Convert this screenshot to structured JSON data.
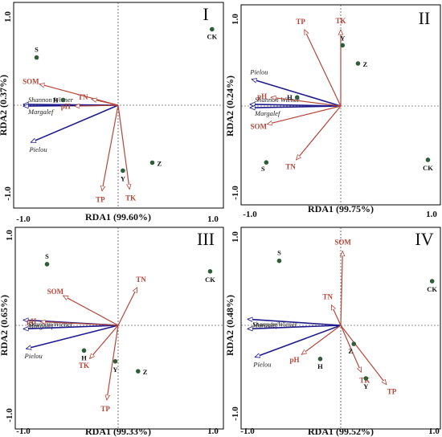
{
  "figure": {
    "colors": {
      "environment": "#b5473a",
      "diversity": "#1f1b8c",
      "site": "#2f5d3a"
    },
    "icons": {
      "site_marker": "filled-circle",
      "arrow": "open-triangle-head"
    }
  },
  "chart_data": [
    {
      "type": "scatter",
      "panel": "I",
      "xlabel": "RDA1 (99.60%)",
      "ylabel": "RDA2 (0.37%)",
      "xlim": [
        -1.0,
        1.0
      ],
      "ylim": [
        -1.0,
        1.0
      ],
      "x_ticks": [
        "-1.0",
        "1.0"
      ],
      "y_ticks": [
        "1.0",
        "-1.0"
      ],
      "environment_vectors": [
        {
          "name": "SOM",
          "x": -0.83,
          "y": 0.24
        },
        {
          "name": "TN",
          "x": -0.28,
          "y": 0.07
        },
        {
          "name": "pH",
          "x": -0.46,
          "y": -0.01
        },
        {
          "name": "TP",
          "x": -0.17,
          "y": -0.97
        },
        {
          "name": "TK",
          "x": 0.12,
          "y": -0.95
        }
      ],
      "diversity_vectors": [
        {
          "name": "Shannon Wiener",
          "x": -1.0,
          "y": 0.01
        },
        {
          "name": "Margalef",
          "x": -1.0,
          "y": -0.01
        },
        {
          "name": "Pielou",
          "x": -0.92,
          "y": -0.42
        }
      ],
      "sites": [
        {
          "name": "S",
          "x": -0.86,
          "y": 0.54
        },
        {
          "name": "H",
          "x": -0.58,
          "y": 0.06
        },
        {
          "name": "CK",
          "x": 0.99,
          "y": 0.86
        },
        {
          "name": "Y",
          "x": 0.05,
          "y": -0.74
        },
        {
          "name": "Z",
          "x": 0.36,
          "y": -0.65
        }
      ]
    },
    {
      "type": "scatter",
      "panel": "II",
      "xlabel": "RDA1 (99.75%)",
      "ylabel": "RDA2 (0.24%)",
      "xlim": [
        -1.0,
        1.0
      ],
      "ylim": [
        -1.0,
        1.0
      ],
      "x_ticks": [
        "-1.0",
        "1.0"
      ],
      "y_ticks": [
        "1.0",
        "-1.0"
      ],
      "environment_vectors": [
        {
          "name": "TP",
          "x": -0.4,
          "y": 0.88
        },
        {
          "name": "TK",
          "x": 0.0,
          "y": 0.88
        },
        {
          "name": "pH",
          "x": -0.77,
          "y": 0.1
        },
        {
          "name": "SOM",
          "x": -0.81,
          "y": -0.21
        },
        {
          "name": "TN",
          "x": -0.49,
          "y": -0.62
        }
      ],
      "diversity_vectors": [
        {
          "name": "Pielou",
          "x": -0.98,
          "y": 0.31
        },
        {
          "name": "Shannon Wiener",
          "x": -1.0,
          "y": 0.02
        },
        {
          "name": "Margalef",
          "x": -1.0,
          "y": -0.02
        }
      ],
      "sites": [
        {
          "name": "Y",
          "x": 0.02,
          "y": 0.7
        },
        {
          "name": "Z",
          "x": 0.19,
          "y": 0.49
        },
        {
          "name": "H",
          "x": -0.48,
          "y": 0.1
        },
        {
          "name": "S",
          "x": -0.82,
          "y": -0.65
        },
        {
          "name": "CK",
          "x": 0.96,
          "y": -0.62
        }
      ]
    },
    {
      "type": "scatter",
      "panel": "III",
      "xlabel": "RDA1 (99.33%)",
      "ylabel": "RDA2 (0.65%)",
      "xlim": [
        -1.0,
        1.0
      ],
      "ylim": [
        -1.0,
        1.0
      ],
      "x_ticks": [
        "-1.0",
        "1.0"
      ],
      "y_ticks": [
        "1.0",
        "-1.0"
      ],
      "environment_vectors": [
        {
          "name": "SOM",
          "x": -0.58,
          "y": 0.33
        },
        {
          "name": "TN",
          "x": 0.2,
          "y": 0.42
        },
        {
          "name": "pH",
          "x": -0.82,
          "y": 0.04
        },
        {
          "name": "TK",
          "x": -0.3,
          "y": -0.37
        },
        {
          "name": "TP",
          "x": -0.12,
          "y": -0.83
        }
      ],
      "diversity_vectors": [
        {
          "name": "Margalef",
          "x": -1.0,
          "y": 0.06
        },
        {
          "name": "Shannon Wiener",
          "x": -1.0,
          "y": -0.04
        },
        {
          "name": "Pielou",
          "x": -0.97,
          "y": -0.26
        }
      ],
      "sites": [
        {
          "name": "S",
          "x": -0.75,
          "y": 0.68
        },
        {
          "name": "CK",
          "x": 0.97,
          "y": 0.6
        },
        {
          "name": "H",
          "x": -0.36,
          "y": -0.28
        },
        {
          "name": "Y",
          "x": -0.03,
          "y": -0.4
        },
        {
          "name": "Z",
          "x": 0.21,
          "y": -0.51
        }
      ]
    },
    {
      "type": "scatter",
      "panel": "IV",
      "xlabel": "RDA1 (99.52%)",
      "ylabel": "RDA2 (0.48%)",
      "xlim": [
        -1.0,
        1.0
      ],
      "ylim": [
        -1.0,
        1.0
      ],
      "x_ticks": [
        "-1.0",
        "1.0"
      ],
      "y_ticks": [
        "1.0",
        "-1.0"
      ],
      "environment_vectors": [
        {
          "name": "SOM",
          "x": 0.02,
          "y": 0.84
        },
        {
          "name": "TN",
          "x": -0.1,
          "y": 0.23
        },
        {
          "name": "pH",
          "x": -0.42,
          "y": -0.33
        },
        {
          "name": "TK",
          "x": 0.22,
          "y": -0.53
        },
        {
          "name": "TP",
          "x": 0.49,
          "y": -0.67
        }
      ],
      "diversity_vectors": [
        {
          "name": "Margalef",
          "x": -1.0,
          "y": 0.07
        },
        {
          "name": "Shannon Wiener",
          "x": -1.0,
          "y": -0.04
        },
        {
          "name": "Pielou",
          "x": -0.92,
          "y": -0.36
        }
      ],
      "sites": [
        {
          "name": "S",
          "x": -0.66,
          "y": 0.73
        },
        {
          "name": "CK",
          "x": 0.98,
          "y": 0.5
        },
        {
          "name": "Z",
          "x": 0.14,
          "y": -0.21
        },
        {
          "name": "H",
          "x": -0.22,
          "y": -0.38
        },
        {
          "name": "Y",
          "x": 0.27,
          "y": -0.6
        }
      ]
    }
  ]
}
